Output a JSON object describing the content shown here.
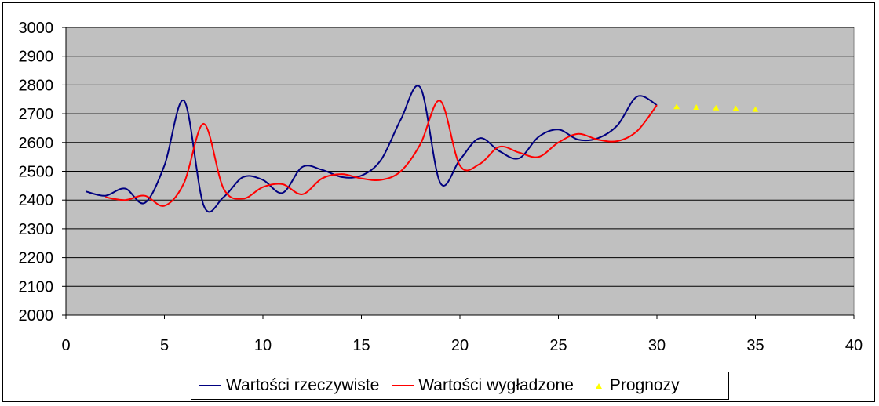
{
  "chart_data": {
    "type": "line",
    "title": "",
    "xlabel": "",
    "ylabel": "",
    "xlim": [
      0,
      40
    ],
    "ylim": [
      2000,
      3000
    ],
    "x_ticks": [
      "0",
      "5",
      "10",
      "15",
      "20",
      "25",
      "30",
      "35",
      "40"
    ],
    "y_ticks": [
      "3000",
      "2900",
      "2800",
      "2700",
      "2600",
      "2500",
      "2400",
      "2300",
      "2200",
      "2100",
      "2000"
    ],
    "grid": "horizontal",
    "plot_background": "#c0c0c0",
    "legend_position": "bottom",
    "series": [
      {
        "name": "Wartości rzeczywiste",
        "color": "#000080",
        "style": "smooth-line",
        "x": [
          1,
          2,
          3,
          4,
          5,
          6,
          7,
          8,
          9,
          10,
          11,
          12,
          13,
          14,
          15,
          16,
          17,
          18,
          19,
          20,
          21,
          22,
          23,
          24,
          25,
          26,
          27,
          28,
          29,
          30
        ],
        "values": [
          2430,
          2415,
          2440,
          2390,
          2520,
          2745,
          2380,
          2410,
          2480,
          2470,
          2425,
          2515,
          2505,
          2480,
          2485,
          2540,
          2680,
          2790,
          2460,
          2540,
          2615,
          2570,
          2545,
          2620,
          2645,
          2610,
          2615,
          2660,
          2760,
          2730
        ]
      },
      {
        "name": "Wartości wygładzone",
        "color": "#ff0000",
        "style": "smooth-line",
        "x": [
          2,
          3,
          4,
          5,
          6,
          7,
          8,
          9,
          10,
          11,
          12,
          13,
          14,
          15,
          16,
          17,
          18,
          19,
          20,
          21,
          22,
          23,
          24,
          25,
          26,
          27,
          28,
          29,
          30
        ],
        "values": [
          2410,
          2400,
          2415,
          2380,
          2460,
          2665,
          2440,
          2405,
          2445,
          2455,
          2420,
          2475,
          2490,
          2475,
          2470,
          2500,
          2595,
          2745,
          2520,
          2525,
          2585,
          2565,
          2550,
          2600,
          2630,
          2610,
          2605,
          2640,
          2730
        ]
      },
      {
        "name": "Prognozy",
        "color": "#ffff00",
        "style": "triangle-markers",
        "x": [
          31,
          32,
          33,
          34,
          35
        ],
        "values": [
          2724,
          2722,
          2720,
          2718,
          2715
        ]
      }
    ]
  }
}
